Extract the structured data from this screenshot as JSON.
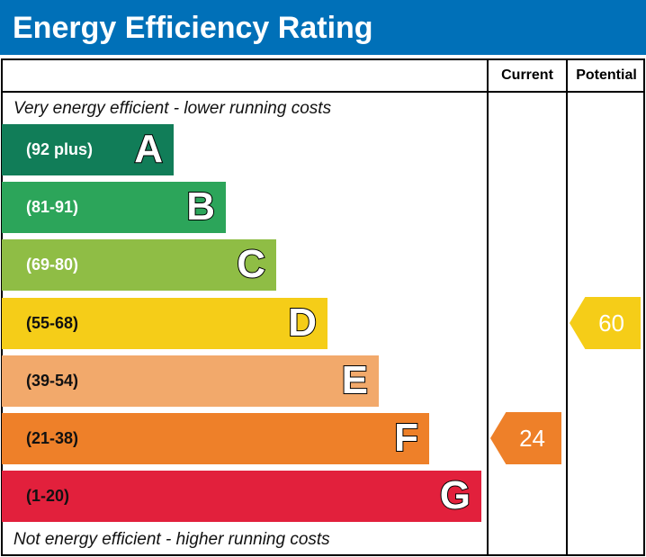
{
  "title": "Energy Efficiency Rating",
  "chart_data": {
    "type": "bar",
    "title": "Energy Efficiency Rating",
    "columns": [
      "Current",
      "Potential"
    ],
    "top_note": "Very energy efficient - lower running costs",
    "bottom_note": "Not energy efficient - higher running costs",
    "bands": [
      {
        "letter": "A",
        "range": "(92 plus)",
        "color": "#117d58"
      },
      {
        "letter": "B",
        "range": "(81-91)",
        "color": "#2ca55a"
      },
      {
        "letter": "C",
        "range": "(69-80)",
        "color": "#8fbd45"
      },
      {
        "letter": "D",
        "range": "(55-68)",
        "color": "#f5cd18"
      },
      {
        "letter": "E",
        "range": "(39-54)",
        "color": "#f2a96b"
      },
      {
        "letter": "F",
        "range": "(21-38)",
        "color": "#ee8029"
      },
      {
        "letter": "G",
        "range": "(1-20)",
        "color": "#e2203c"
      }
    ],
    "current": {
      "value": "24",
      "band": "F",
      "color": "#ee8029"
    },
    "potential": {
      "value": "60",
      "band": "D",
      "color": "#f5cd18"
    }
  }
}
